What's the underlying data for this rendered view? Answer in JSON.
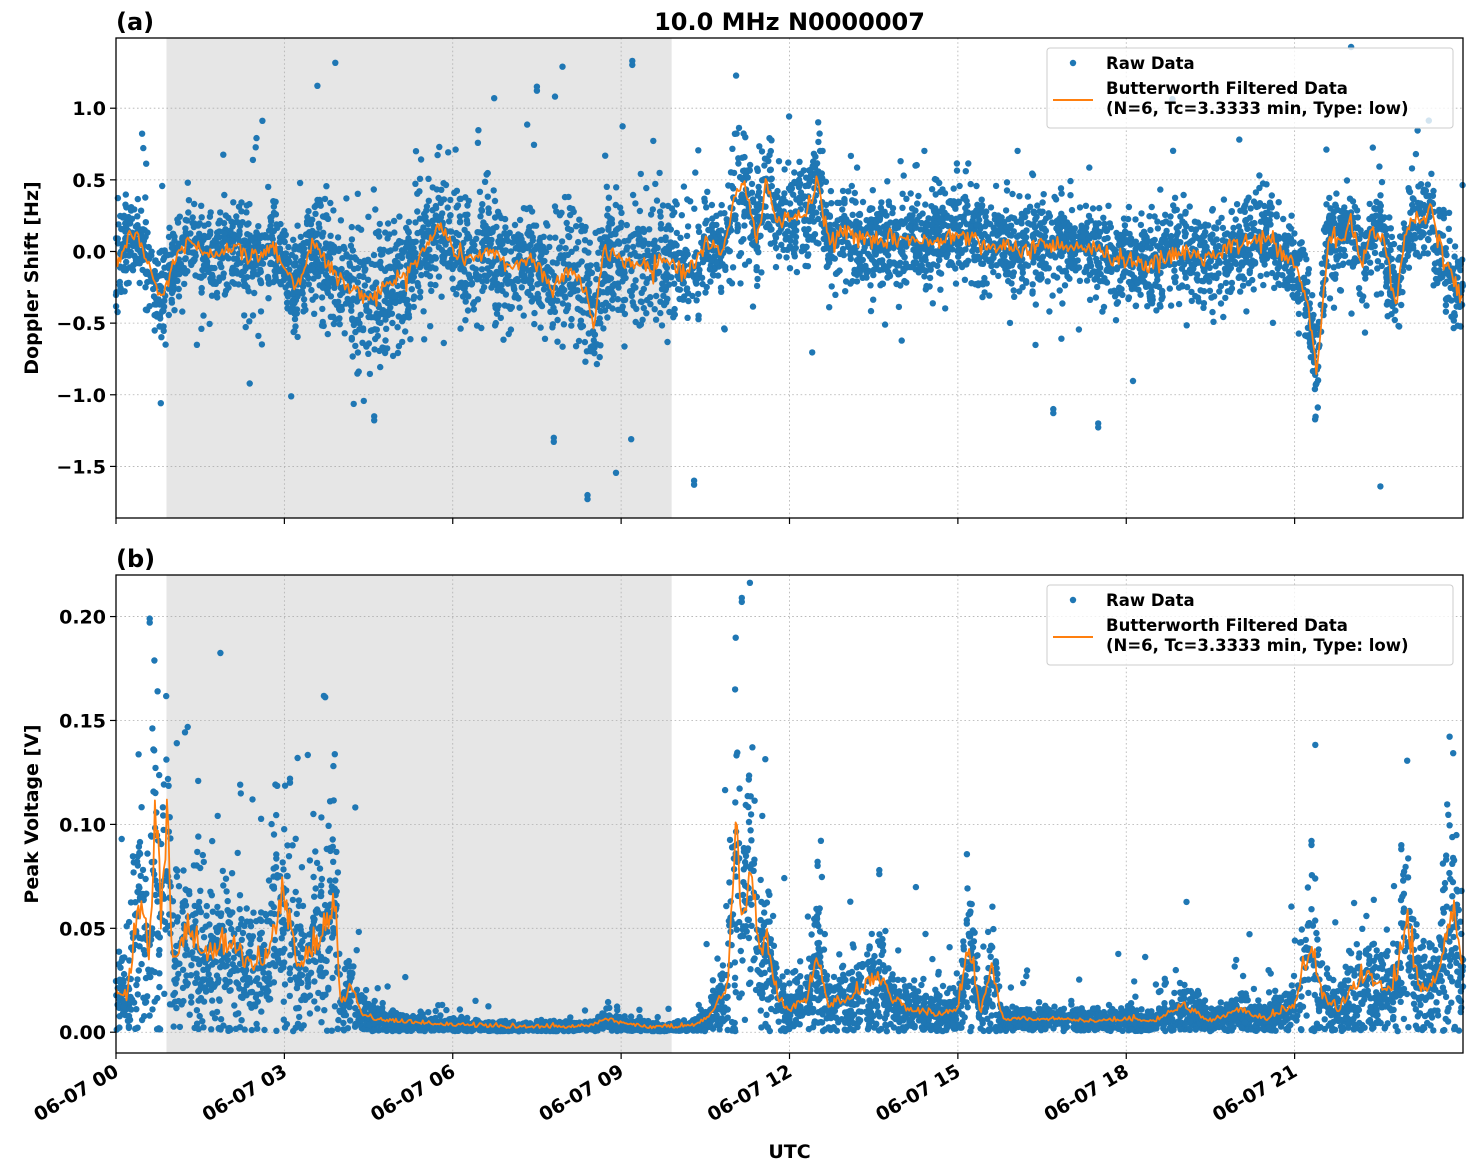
{
  "figure": {
    "title": "10.0 MHz N0000007",
    "xlabel": "UTC",
    "colors": {
      "raw": "#1f77b4",
      "filtered": "#ff7f0e",
      "shade": "#e6e6e6"
    }
  },
  "chart_data": [
    {
      "type": "scatter",
      "panel_label": "(a)",
      "title": "10.0 MHz N0000007",
      "xlabel": "UTC",
      "ylabel": "Doppler Shift [Hz]",
      "xlim_hours": [
        0,
        24
      ],
      "ylim": [
        -1.86,
        1.49
      ],
      "grid": true,
      "x_ticks_hours": [
        0,
        3,
        6,
        9,
        12,
        15,
        18,
        21
      ],
      "x_tick_labels": [
        "06-07 00",
        "06-07 03",
        "06-07 06",
        "06-07 09",
        "06-07 12",
        "06-07 15",
        "06-07 18",
        "06-07 21"
      ],
      "y_ticks": [
        1.0,
        0.5,
        0.0,
        -0.5,
        -1.0,
        -1.5
      ],
      "y_tick_labels": [
        "1.0",
        "0.5",
        "0.0",
        "−0.5",
        "−1.0",
        "−1.5"
      ],
      "shaded_region_hours": [
        0.9,
        9.9
      ],
      "legend": {
        "placement": "top-right",
        "entries": [
          "Raw Data",
          "Butterworth Filtered Data",
          "(N=6, Tc=3.3333 min, Type: low)"
        ]
      },
      "series": [
        {
          "name": "Butterworth Filtered Data",
          "kind": "line",
          "x_hours": [
            0,
            0.3,
            0.6,
            0.8,
            1.0,
            1.3,
            1.6,
            2.0,
            2.4,
            2.8,
            3.0,
            3.2,
            3.5,
            3.8,
            4.0,
            4.3,
            4.6,
            5.0,
            5.4,
            5.8,
            6.0,
            6.3,
            6.6,
            7.0,
            7.4,
            7.8,
            8.1,
            8.4,
            8.5,
            8.7,
            9.0,
            9.4,
            9.8,
            10.2,
            10.5,
            10.8,
            11.0,
            11.2,
            11.4,
            11.6,
            11.8,
            12.0,
            12.3,
            12.5,
            12.7,
            13.0,
            13.5,
            14.0,
            14.5,
            15.0,
            15.5,
            16.0,
            16.5,
            17.0,
            17.5,
            18.0,
            18.5,
            19.0,
            19.5,
            20.0,
            20.5,
            21.0,
            21.2,
            21.4,
            21.6,
            21.8,
            22.0,
            22.2,
            22.4,
            22.6,
            22.8,
            23.0,
            23.2,
            23.4,
            23.6,
            23.8,
            24.0
          ],
          "y": [
            -0.1,
            0.15,
            -0.1,
            -0.35,
            -0.1,
            0.1,
            -0.05,
            0.05,
            -0.05,
            0.05,
            -0.1,
            -0.25,
            0.05,
            -0.1,
            -0.2,
            -0.3,
            -0.3,
            -0.2,
            -0.05,
            0.2,
            0.0,
            -0.05,
            0.0,
            -0.1,
            -0.05,
            -0.25,
            -0.1,
            -0.3,
            -0.55,
            0.0,
            -0.05,
            -0.1,
            -0.05,
            -0.15,
            0.05,
            0.0,
            0.35,
            0.45,
            0.1,
            0.5,
            0.15,
            0.25,
            0.25,
            0.5,
            0.05,
            0.15,
            0.05,
            0.1,
            0.05,
            0.15,
            0.05,
            0.0,
            0.05,
            0.05,
            0.0,
            -0.05,
            -0.1,
            0.0,
            -0.05,
            0.05,
            0.1,
            -0.1,
            -0.3,
            -0.85,
            0.1,
            0.05,
            0.2,
            -0.1,
            0.2,
            0.05,
            -0.35,
            0.15,
            0.25,
            0.3,
            0.0,
            -0.2,
            -0.3
          ]
        },
        {
          "name": "Raw Data",
          "kind": "scatter",
          "spread_hz": 0.3,
          "outliers": [
            {
              "x_hours": 9.2,
              "y": 1.33
            },
            {
              "x_hours": 8.4,
              "y": -1.7
            },
            {
              "x_hours": 10.3,
              "y": -1.6
            },
            {
              "x_hours": 7.5,
              "y": 1.15
            },
            {
              "x_hours": 4.6,
              "y": -1.15
            },
            {
              "x_hours": 17.5,
              "y": -1.2
            },
            {
              "x_hours": 16.7,
              "y": -1.1
            },
            {
              "x_hours": 7.8,
              "y": -1.3
            }
          ]
        }
      ]
    },
    {
      "type": "scatter",
      "panel_label": "(b)",
      "xlabel": "UTC",
      "ylabel": "Peak Voltage [V]",
      "xlim_hours": [
        0,
        24
      ],
      "ylim": [
        -0.01,
        0.22
      ],
      "grid": true,
      "x_ticks_hours": [
        0,
        3,
        6,
        9,
        12,
        15,
        18,
        21
      ],
      "x_tick_labels": [
        "06-07 00",
        "06-07 03",
        "06-07 06",
        "06-07 09",
        "06-07 12",
        "06-07 15",
        "06-07 18",
        "06-07 21"
      ],
      "y_ticks": [
        0.2,
        0.15,
        0.1,
        0.05,
        0.0
      ],
      "y_tick_labels": [
        "0.20",
        "0.15",
        "0.10",
        "0.05",
        "0.00"
      ],
      "shaded_region_hours": [
        0.9,
        9.9
      ],
      "legend": {
        "placement": "top-right",
        "entries": [
          "Raw Data",
          "Butterworth Filtered Data",
          "(N=6, Tc=3.3333 min, Type: low)"
        ]
      },
      "series": [
        {
          "name": "Butterworth Filtered Data",
          "kind": "line",
          "x_hours": [
            0,
            0.2,
            0.4,
            0.6,
            0.7,
            0.8,
            0.9,
            1.0,
            1.3,
            1.6,
            2.0,
            2.4,
            2.7,
            3.0,
            3.2,
            3.4,
            3.7,
            3.9,
            4.0,
            4.2,
            4.4,
            4.6,
            5.0,
            5.5,
            6.0,
            6.5,
            7.0,
            7.5,
            8.0,
            8.5,
            8.7,
            9.0,
            9.5,
            10.0,
            10.3,
            10.6,
            10.9,
            11.05,
            11.15,
            11.3,
            11.45,
            11.6,
            11.8,
            12.0,
            12.3,
            12.5,
            12.7,
            13.0,
            13.3,
            13.6,
            13.9,
            14.2,
            14.6,
            15.0,
            15.2,
            15.4,
            15.6,
            15.8,
            16.2,
            16.8,
            17.4,
            18.0,
            18.5,
            19.0,
            19.5,
            20.0,
            20.5,
            21.0,
            21.3,
            21.5,
            21.8,
            22.0,
            22.3,
            22.6,
            22.8,
            23.0,
            23.2,
            23.5,
            23.8,
            24.0
          ],
          "y": [
            0.02,
            0.015,
            0.06,
            0.035,
            0.097,
            0.05,
            0.095,
            0.035,
            0.045,
            0.035,
            0.04,
            0.03,
            0.035,
            0.06,
            0.03,
            0.035,
            0.045,
            0.06,
            0.012,
            0.02,
            0.008,
            0.006,
            0.005,
            0.004,
            0.003,
            0.0025,
            0.002,
            0.002,
            0.002,
            0.003,
            0.006,
            0.004,
            0.002,
            0.002,
            0.003,
            0.008,
            0.02,
            0.098,
            0.045,
            0.075,
            0.035,
            0.04,
            0.015,
            0.01,
            0.015,
            0.035,
            0.012,
            0.015,
            0.02,
            0.025,
            0.012,
            0.01,
            0.008,
            0.01,
            0.04,
            0.008,
            0.03,
            0.006,
            0.006,
            0.006,
            0.005,
            0.006,
            0.005,
            0.012,
            0.005,
            0.01,
            0.006,
            0.012,
            0.04,
            0.015,
            0.01,
            0.02,
            0.025,
            0.02,
            0.02,
            0.05,
            0.02,
            0.02,
            0.055,
            0.03
          ]
        },
        {
          "name": "Raw Data",
          "kind": "scatter",
          "outliers": [
            {
              "x_hours": 11.15,
              "y": 0.209
            },
            {
              "x_hours": 0.6,
              "y": 0.199
            },
            {
              "x_hours": 3.1,
              "y": 0.122
            },
            {
              "x_hours": 12.5,
              "y": 0.082
            },
            {
              "x_hours": 13.6,
              "y": 0.078
            },
            {
              "x_hours": 21.3,
              "y": 0.092
            },
            {
              "x_hours": 22.9,
              "y": 0.09
            },
            {
              "x_hours": 23.7,
              "y": 0.085
            }
          ]
        }
      ]
    }
  ]
}
